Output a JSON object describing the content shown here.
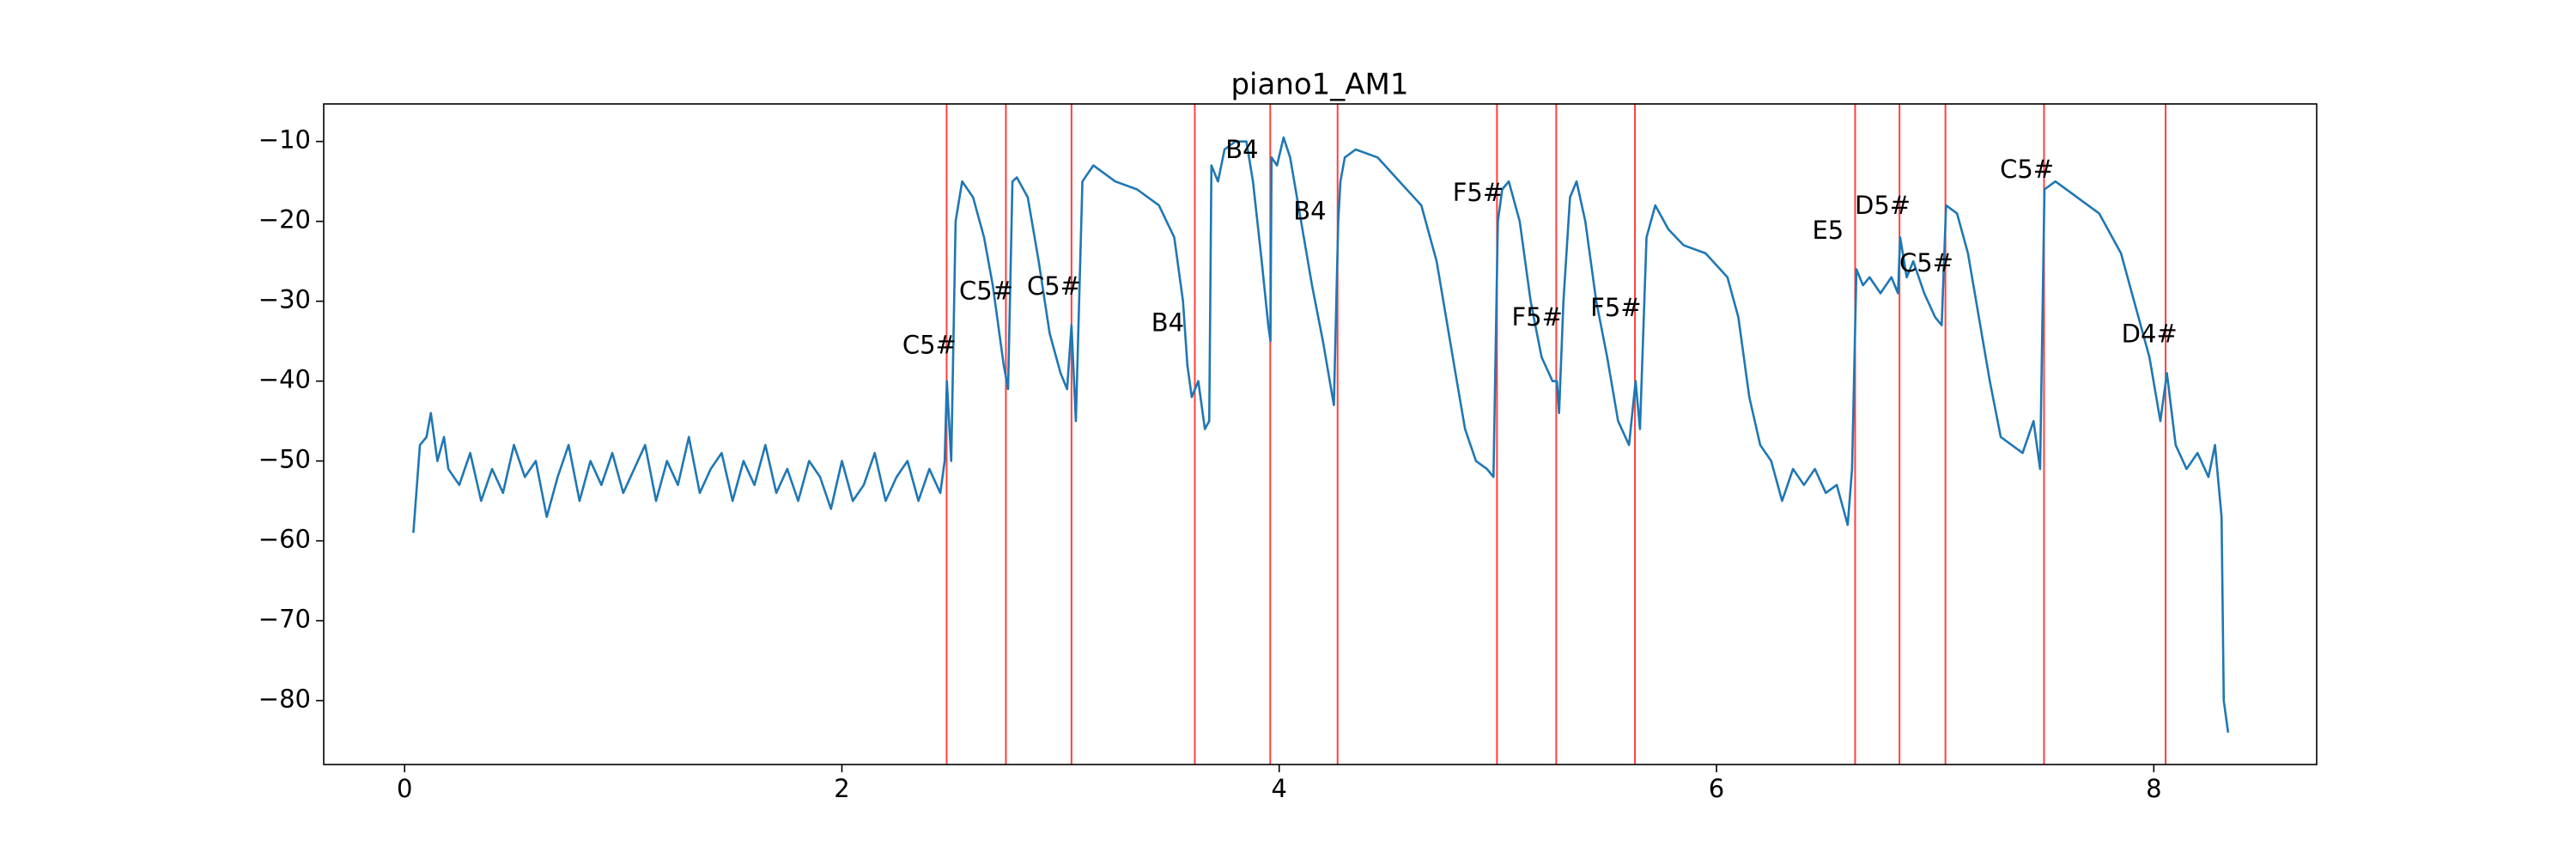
{
  "chart_data": {
    "type": "line",
    "title": "piano1_AM1",
    "x": [
      0.04,
      0.07,
      0.1,
      0.12,
      0.15,
      0.18,
      0.2,
      0.25,
      0.3,
      0.35,
      0.4,
      0.45,
      0.5,
      0.55,
      0.6,
      0.65,
      0.7,
      0.75,
      0.8,
      0.85,
      0.9,
      0.95,
      1.0,
      1.05,
      1.1,
      1.15,
      1.2,
      1.25,
      1.3,
      1.35,
      1.4,
      1.45,
      1.5,
      1.55,
      1.6,
      1.65,
      1.7,
      1.75,
      1.8,
      1.85,
      1.9,
      1.95,
      2.0,
      2.05,
      2.1,
      2.15,
      2.2,
      2.25,
      2.3,
      2.35,
      2.4,
      2.45,
      2.47,
      2.48,
      2.5,
      2.52,
      2.55,
      2.6,
      2.65,
      2.69,
      2.72,
      2.74,
      2.76,
      2.78,
      2.8,
      2.85,
      2.9,
      2.95,
      3.0,
      3.03,
      3.05,
      3.07,
      3.1,
      3.15,
      3.25,
      3.35,
      3.45,
      3.52,
      3.56,
      3.58,
      3.6,
      3.63,
      3.66,
      3.68,
      3.69,
      3.72,
      3.75,
      3.8,
      3.85,
      3.88,
      3.92,
      3.95,
      3.96,
      3.965,
      3.99,
      4.02,
      4.05,
      4.1,
      4.15,
      4.2,
      4.25,
      4.27,
      4.28,
      4.3,
      4.35,
      4.45,
      4.55,
      4.65,
      4.72,
      4.8,
      4.85,
      4.9,
      4.95,
      4.98,
      5.0,
      5.02,
      5.05,
      5.1,
      5.15,
      5.2,
      5.25,
      5.27,
      5.28,
      5.3,
      5.33,
      5.36,
      5.4,
      5.45,
      5.5,
      5.55,
      5.6,
      5.63,
      5.65,
      5.68,
      5.72,
      5.78,
      5.85,
      5.95,
      6.05,
      6.1,
      6.15,
      6.2,
      6.25,
      6.3,
      6.35,
      6.4,
      6.45,
      6.5,
      6.55,
      6.6,
      6.62,
      6.64,
      6.67,
      6.7,
      6.75,
      6.8,
      6.83,
      6.84,
      6.87,
      6.9,
      6.95,
      7.0,
      7.03,
      7.05,
      7.1,
      7.15,
      7.2,
      7.25,
      7.3,
      7.4,
      7.45,
      7.48,
      7.5,
      7.55,
      7.65,
      7.75,
      7.85,
      7.92,
      7.98,
      8.03,
      8.06,
      8.1,
      8.15,
      8.2,
      8.25,
      8.28,
      8.31,
      8.32,
      8.34
    ],
    "series": [
      {
        "color": "#1f77b4",
        "values": [
          -59,
          -48,
          -47,
          -44,
          -50,
          -47,
          -51,
          -53,
          -49,
          -55,
          -51,
          -54,
          -48,
          -52,
          -50,
          -57,
          -52,
          -48,
          -55,
          -50,
          -53,
          -49,
          -54,
          -51,
          -48,
          -55,
          -50,
          -53,
          -47,
          -54,
          -51,
          -49,
          -55,
          -50,
          -53,
          -48,
          -54,
          -51,
          -55,
          -50,
          -52,
          -56,
          -50,
          -55,
          -53,
          -49,
          -55,
          -52,
          -50,
          -55,
          -51,
          -54,
          -50,
          -40,
          -50,
          -20,
          -15,
          -17,
          -22,
          -28,
          -34,
          -38,
          -41,
          -15,
          -14.5,
          -17,
          -25,
          -34,
          -39,
          -41,
          -33,
          -45,
          -15,
          -13,
          -15,
          -16,
          -18,
          -22,
          -30,
          -38,
          -42,
          -40,
          -46,
          -45,
          -13,
          -15,
          -11,
          -10,
          -10,
          -15,
          -25,
          -33,
          -35,
          -12,
          -13,
          -9.5,
          -12,
          -20,
          -28,
          -35,
          -43,
          -20,
          -15,
          -12,
          -11,
          -12,
          -15,
          -18,
          -25,
          -38,
          -46,
          -50,
          -51,
          -52,
          -20,
          -16,
          -15,
          -20,
          -30,
          -37,
          -40,
          -40,
          -44,
          -30,
          -17,
          -15,
          -20,
          -30,
          -37,
          -45,
          -48,
          -40,
          -46,
          -22,
          -18,
          -21,
          -23,
          -24,
          -27,
          -32,
          -42,
          -48,
          -50,
          -55,
          -51,
          -53,
          -51,
          -54,
          -53,
          -58,
          -51,
          -26,
          -28,
          -27,
          -29,
          -27,
          -29,
          -22,
          -27,
          -25,
          -29,
          -32,
          -33,
          -18,
          -19,
          -24,
          -32,
          -40,
          -47,
          -49,
          -45,
          -51,
          -16,
          -15,
          -17,
          -19,
          -24,
          -31,
          -37,
          -45,
          -39,
          -48,
          -51,
          -49,
          -52,
          -48,
          -57,
          -80,
          -84
        ]
      }
    ],
    "vlines": [
      2.479,
      2.75,
      3.05,
      3.614,
      3.959,
      4.267,
      4.996,
      5.267,
      5.627,
      6.634,
      6.837,
      7.047,
      7.498,
      8.054
    ],
    "vline_color": "#ff0000",
    "annotations": [
      {
        "text": "C5#",
        "x": 2.4,
        "y": -35.7
      },
      {
        "text": "C5#",
        "x": 2.66,
        "y": -28.9
      },
      {
        "text": "C5#",
        "x": 2.97,
        "y": -28.3
      },
      {
        "text": "B4",
        "x": 3.49,
        "y": -32.9
      },
      {
        "text": "B4",
        "x": 3.83,
        "y": -11.2
      },
      {
        "text": "B4",
        "x": 4.14,
        "y": -18.9
      },
      {
        "text": "F5#",
        "x": 4.91,
        "y": -16.6
      },
      {
        "text": "F5#",
        "x": 5.18,
        "y": -32.2
      },
      {
        "text": "F5#",
        "x": 5.54,
        "y": -31.0
      },
      {
        "text": "E5",
        "x": 6.51,
        "y": -21.3
      },
      {
        "text": "D5#",
        "x": 6.76,
        "y": -18.2
      },
      {
        "text": "C5#",
        "x": 6.96,
        "y": -25.4
      },
      {
        "text": "C5#",
        "x": 7.42,
        "y": -13.7
      },
      {
        "text": "D4#",
        "x": 7.98,
        "y": -34.3
      }
    ],
    "xlim": [
      -0.37,
      8.745
    ],
    "ylim": [
      -88.0,
      -5.3
    ],
    "xticks": [
      0,
      2,
      4,
      6,
      8
    ],
    "yticks": [
      {
        "value": -10,
        "label": "−10"
      },
      {
        "value": -20,
        "label": "−20"
      },
      {
        "value": -30,
        "label": "−30"
      },
      {
        "value": -40,
        "label": "−40"
      },
      {
        "value": -50,
        "label": "−50"
      },
      {
        "value": -60,
        "label": "−60"
      },
      {
        "value": -70,
        "label": "−70"
      },
      {
        "value": -80,
        "label": "−80"
      }
    ],
    "grid": false
  }
}
